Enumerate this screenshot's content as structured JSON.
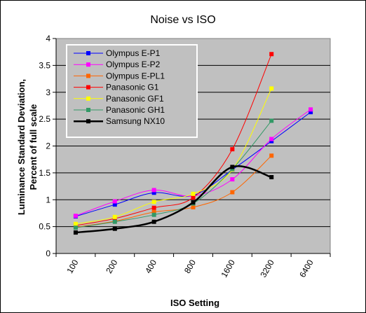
{
  "chart_data": {
    "type": "line",
    "title": "Noise vs ISO",
    "xlabel": "ISO Setting",
    "ylabel_lines": [
      "Luminance Standard Deviation,",
      "Percent of full scale"
    ],
    "categories": [
      "100",
      "200",
      "400",
      "800",
      "1600",
      "3200",
      "6400"
    ],
    "ylim": [
      0,
      4
    ],
    "yticks": [
      "0",
      "0.5",
      "1",
      "1.5",
      "2",
      "2.5",
      "3",
      "3.5",
      "4"
    ],
    "grid": true,
    "legend_position": "top-left",
    "plot_background": "#c0c0c0",
    "series": [
      {
        "name": "Olympus E-P1",
        "color": "#0000ff",
        "values": [
          0.69,
          0.91,
          1.13,
          1.08,
          1.56,
          2.09,
          2.63
        ]
      },
      {
        "name": "Olympus E-P2",
        "color": "#ff00ff",
        "values": [
          0.7,
          0.97,
          1.18,
          1.07,
          1.38,
          2.13,
          2.68
        ]
      },
      {
        "name": "Olympus E-PL1",
        "color": "#ff6600",
        "values": [
          0.49,
          0.6,
          0.77,
          0.86,
          1.14,
          1.82,
          null
        ]
      },
      {
        "name": "Panasonic G1",
        "color": "#ff0000",
        "values": [
          0.52,
          0.65,
          0.85,
          1.04,
          1.94,
          3.71,
          null
        ]
      },
      {
        "name": "Panasonic GF1",
        "color": "#ffff00",
        "values": [
          0.55,
          0.68,
          0.96,
          1.11,
          1.56,
          3.07,
          null
        ]
      },
      {
        "name": "Panasonic GH1",
        "color": "#339966",
        "values": [
          0.48,
          0.59,
          0.72,
          0.93,
          1.57,
          2.47,
          null
        ]
      },
      {
        "name": "Samsung NX10",
        "color": "#000000",
        "values": [
          0.39,
          0.46,
          0.59,
          0.95,
          1.61,
          1.42,
          null
        ]
      }
    ]
  }
}
